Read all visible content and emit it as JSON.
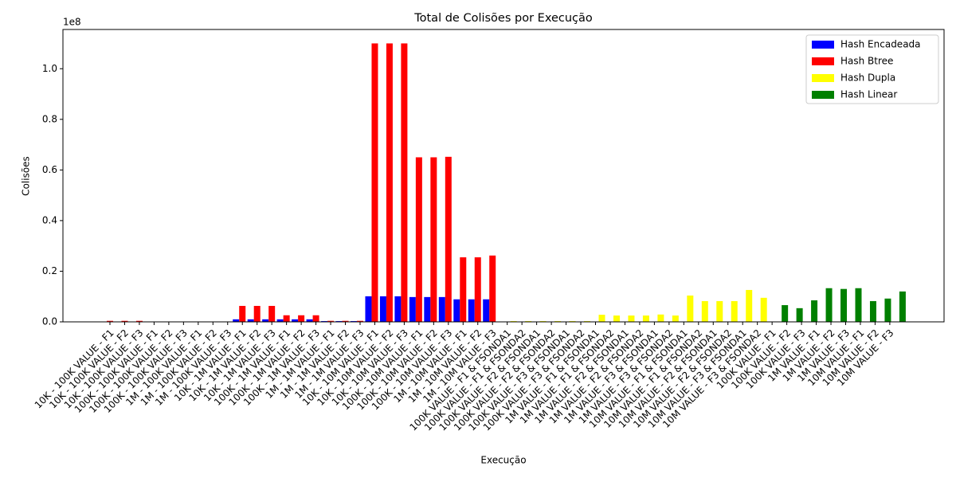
{
  "chart_data": {
    "type": "bar",
    "title": "Total de Colisões por Execução",
    "x_label": "Execução",
    "y_label": "Colisões",
    "y_offset_label": "1e8",
    "categories": [
      "10K - 100K VALUE - F1",
      "10K - 100K VALUE - F2",
      "10K - 100K VALUE - F3",
      "100K - 100K VALUE - F1",
      "100K - 100K VALUE - F2",
      "100K - 100K VALUE - F3",
      "1M - 100K VALUE - F1",
      "1M - 100K VALUE - F2",
      "1M - 100K VALUE - F3",
      "10K - 1M VALUE - F1",
      "10K - 1M VALUE - F2",
      "10K - 1M VALUE - F3",
      "100K - 1M VALUE - F1",
      "100K - 1M VALUE - F2",
      "100K - 1M VALUE - F3",
      "1M - 1M VALUE - F1",
      "1M - 1M VALUE - F2",
      "1M - 1M VALUE - F3",
      "10K - 10M VALUE - F1",
      "10K - 10M VALUE - F2",
      "10K - 10M VALUE - F3",
      "100K - 10M VALUE - F1",
      "100K - 10M VALUE - F2",
      "100K - 10M VALUE - F3",
      "1M - 10M VALUE - F1",
      "1M - 10M VALUE - F2",
      "1M - 10M VALUE - F3",
      "100K VALUE - F1 & FSONDA1",
      "100K VALUE - F1 & FSONDA2",
      "100K VALUE - F2 & FSONDA1",
      "100K VALUE - F2 & FSONDA2",
      "100K VALUE - F3 & FSONDA1",
      "100K VALUE - F3 & FSONDA2",
      "1M VALUE - F1 & FSONDA1",
      "1M VALUE - F1 & FSONDA2",
      "1M VALUE - F2 & FSONDA1",
      "1M VALUE - F2 & FSONDA2",
      "1M VALUE - F3 & FSONDA1",
      "1M VALUE - F3 & FSONDA2",
      "10M VALUE - F1 & FSONDA1",
      "10M VALUE - F1 & FSONDA2",
      "10M VALUE - F2 & FSONDA1",
      "10M VALUE - F2 & FSONDA2",
      "10M VALUE - F3 & FSONDA1",
      "10M VALUE - F3 & FSONDA2",
      "100K VALUE - F1",
      "100K VALUE - F2",
      "100K VALUE - F3",
      "1M VALUE - F1",
      "1M VALUE - F2",
      "1M VALUE - F3",
      "10M VALUE - F1",
      "10M VALUE - F2",
      "10M VALUE - F3"
    ],
    "series": [
      {
        "name": "Hash Encadeada",
        "color": "#0000ff",
        "values": [
          50000,
          50000,
          50000,
          20000,
          20000,
          20000,
          10000,
          10000,
          10000,
          1000000,
          1000000,
          1000000,
          1000000,
          1000000,
          1000000,
          300000,
          300000,
          300000,
          10100000,
          10100000,
          10100000,
          9800000,
          9800000,
          9800000,
          8900000,
          8900000,
          8900000,
          null,
          null,
          null,
          null,
          null,
          null,
          null,
          null,
          null,
          null,
          null,
          null,
          null,
          null,
          null,
          null,
          null,
          null,
          null,
          null,
          null,
          null,
          null,
          null,
          null,
          null,
          null
        ]
      },
      {
        "name": "Hash Btree",
        "color": "#ff0000",
        "values": [
          400000,
          400000,
          400000,
          100000,
          100000,
          100000,
          50000,
          50000,
          50000,
          6300000,
          6300000,
          6300000,
          2600000,
          2600000,
          2600000,
          400000,
          400000,
          400000,
          110000000,
          110000000,
          110000000,
          65000000,
          65000000,
          65200000,
          25500000,
          25500000,
          26200000,
          null,
          null,
          null,
          null,
          null,
          null,
          null,
          null,
          null,
          null,
          null,
          null,
          null,
          null,
          null,
          null,
          null,
          null,
          null,
          null,
          null,
          null,
          null,
          null,
          null,
          null,
          null
        ]
      },
      {
        "name": "Hash Dupla",
        "color": "#ffff00",
        "values": [
          null,
          null,
          null,
          null,
          null,
          null,
          null,
          null,
          null,
          null,
          null,
          null,
          null,
          null,
          null,
          null,
          null,
          null,
          null,
          null,
          null,
          null,
          null,
          null,
          null,
          null,
          null,
          300000,
          300000,
          300000,
          300000,
          300000,
          300000,
          2800000,
          2500000,
          2500000,
          2500000,
          2900000,
          2500000,
          10400000,
          8200000,
          8200000,
          8200000,
          12600000,
          9500000,
          null,
          null,
          null,
          null,
          null,
          null,
          null,
          null,
          null
        ]
      },
      {
        "name": "Hash Linear",
        "color": "#008000",
        "values": [
          null,
          null,
          null,
          null,
          null,
          null,
          null,
          null,
          null,
          null,
          null,
          null,
          null,
          null,
          null,
          null,
          null,
          null,
          null,
          null,
          null,
          null,
          null,
          null,
          null,
          null,
          null,
          null,
          null,
          null,
          null,
          null,
          null,
          null,
          null,
          null,
          null,
          null,
          null,
          null,
          null,
          null,
          null,
          null,
          null,
          6600000,
          5400000,
          8500000,
          13300000,
          13000000,
          13300000,
          8200000,
          9200000,
          12000000
        ]
      }
    ],
    "ylim": [
      0,
      115500000
    ],
    "yticks": [
      {
        "value": 0,
        "label": "0.0"
      },
      {
        "value": 20000000,
        "label": "0.2"
      },
      {
        "value": 40000000,
        "label": "0.4"
      },
      {
        "value": 60000000,
        "label": "0.6"
      },
      {
        "value": 80000000,
        "label": "0.8"
      },
      {
        "value": 100000000,
        "label": "1.0"
      }
    ],
    "legend": "upper right",
    "grid": false
  }
}
